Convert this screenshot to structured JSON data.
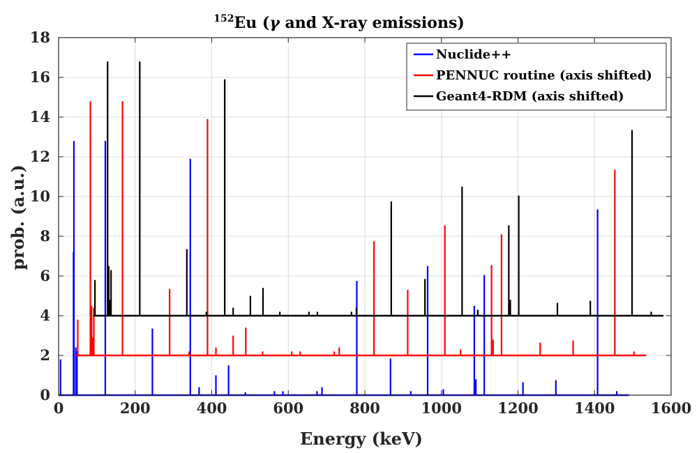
{
  "chart_data": {
    "type": "line",
    "title_sup": "152",
    "title_main": "Eu (",
    "title_gamma": "γ",
    "title_rest": " and X-ray emissions)",
    "xlabel": "Energy (keV)",
    "ylabel": "prob. (a.u.)",
    "xlim": [
      0,
      1600
    ],
    "ylim": [
      0,
      18
    ],
    "xticks": [
      0,
      200,
      400,
      600,
      800,
      1000,
      1200,
      1400,
      1600
    ],
    "yticks": [
      0,
      2,
      4,
      6,
      8,
      10,
      12,
      14,
      16,
      18
    ],
    "grid": true,
    "legend_position": "top-right",
    "series": [
      {
        "name": "Nuclide++",
        "color": "#0000ff",
        "baseline": 0,
        "x_end": 1490,
        "peaks": [
          [
            5,
            1.8
          ],
          [
            40,
            12.8
          ],
          [
            39,
            7.2
          ],
          [
            45,
            2.4
          ],
          [
            48,
            2.2
          ],
          [
            122,
            12.8
          ],
          [
            245,
            3.35
          ],
          [
            344,
            11.9
          ],
          [
            367,
            0.4
          ],
          [
            411,
            1.0
          ],
          [
            444,
            1.5
          ],
          [
            488,
            0.15
          ],
          [
            564,
            0.2
          ],
          [
            586,
            0.2
          ],
          [
            675,
            0.2
          ],
          [
            688,
            0.4
          ],
          [
            779,
            5.75
          ],
          [
            867,
            1.85
          ],
          [
            920,
            0.2
          ],
          [
            964,
            6.5
          ],
          [
            1005,
            0.3
          ],
          [
            1086,
            4.5
          ],
          [
            1090,
            0.8
          ],
          [
            1112,
            6.05
          ],
          [
            1213,
            0.65
          ],
          [
            1299,
            0.75
          ],
          [
            1408,
            9.35
          ],
          [
            1458,
            0.2
          ]
        ]
      },
      {
        "name": "PENNUC routine (axis shifted)",
        "color": "#ff0000",
        "baseline": 2,
        "x_start": 45,
        "x_end": 1535,
        "peaks": [
          [
            50,
            3.8
          ],
          [
            83,
            14.8
          ],
          [
            86,
            4.5
          ],
          [
            89,
            2.9
          ],
          [
            92,
            4.4
          ],
          [
            167,
            14.8
          ],
          [
            290,
            5.35
          ],
          [
            341,
            2.2
          ],
          [
            389,
            13.9
          ],
          [
            411,
            2.4
          ],
          [
            456,
            3.0
          ],
          [
            489,
            3.4
          ],
          [
            533,
            2.2
          ],
          [
            609,
            2.2
          ],
          [
            631,
            2.2
          ],
          [
            720,
            2.2
          ],
          [
            733,
            2.4
          ],
          [
            824,
            7.75
          ],
          [
            912,
            5.3
          ],
          [
            1009,
            8.55
          ],
          [
            1050,
            2.3
          ],
          [
            1131,
            6.55
          ],
          [
            1135,
            2.8
          ],
          [
            1157,
            8.1
          ],
          [
            1258,
            2.65
          ],
          [
            1344,
            2.75
          ],
          [
            1453,
            11.35
          ],
          [
            1503,
            2.2
          ]
        ]
      },
      {
        "name": "Geant4-RDM (axis shifted)",
        "color": "#000000",
        "baseline": 4,
        "x_start": 90,
        "x_end": 1580,
        "peaks": [
          [
            95,
            5.8
          ],
          [
            128,
            16.8
          ],
          [
            131,
            6.5
          ],
          [
            134,
            4.8
          ],
          [
            137,
            6.3
          ],
          [
            212,
            16.8
          ],
          [
            335,
            7.35
          ],
          [
            386,
            4.2
          ],
          [
            434,
            15.9
          ],
          [
            456,
            4.4
          ],
          [
            501,
            5.0
          ],
          [
            534,
            5.4
          ],
          [
            578,
            4.2
          ],
          [
            654,
            4.2
          ],
          [
            676,
            4.2
          ],
          [
            765,
            4.2
          ],
          [
            778,
            4.4
          ],
          [
            869,
            9.75
          ],
          [
            957,
            5.85
          ],
          [
            1054,
            10.5
          ],
          [
            1095,
            4.3
          ],
          [
            1176,
            8.55
          ],
          [
            1180,
            4.8
          ],
          [
            1202,
            10.05
          ],
          [
            1303,
            4.65
          ],
          [
            1389,
            4.75
          ],
          [
            1498,
            13.35
          ],
          [
            1548,
            4.2
          ]
        ]
      }
    ]
  }
}
